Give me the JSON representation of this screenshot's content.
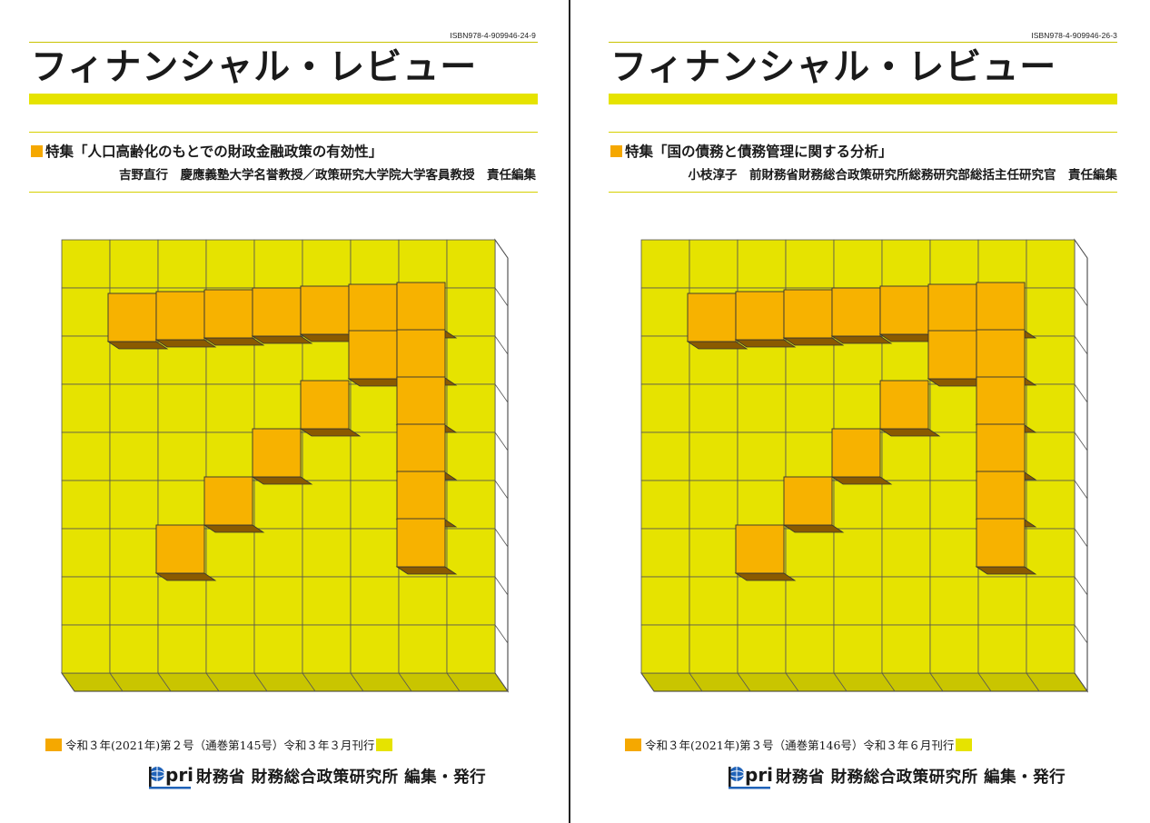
{
  "covers": [
    {
      "isbn": "ISBN978-4-909946-24-9",
      "title": "フィナンシャル・レビュー",
      "feature_label": "特集",
      "feature_title": "「人口高齢化のもとでの財政金融政策の有効性」",
      "editor": "吉野直行　慶應義塾大学名誉教授／政策研究大学院大学客員教授　責任編集",
      "issue_info": "令和３年(2021年)第２号（通巻第145号）令和３年３月刊行",
      "publisher": "財務省 財務総合政策研究所 編集・発行"
    },
    {
      "isbn": "ISBN978-4-909946-26-3",
      "title": "フィナンシャル・レビュー",
      "feature_label": "特集",
      "feature_title": "「国の債務と債務管理に関する分析」",
      "editor": "小枝淳子　前財務省財務総合政策研究所総務研究部総括主任研究官　責任編集",
      "issue_info": "令和３年(2021年)第３号（通巻第146号）令和３年６月刊行",
      "publisher": "財務省 財務総合政策研究所 編集・発行"
    }
  ],
  "logo_text": "pri",
  "colors": {
    "grid_yellow": "#e6e300",
    "grid_bottom": "#c9c500",
    "block_orange": "#f7b200",
    "block_shadow": "#8a5a00",
    "accent_orange": "#f5a800"
  }
}
